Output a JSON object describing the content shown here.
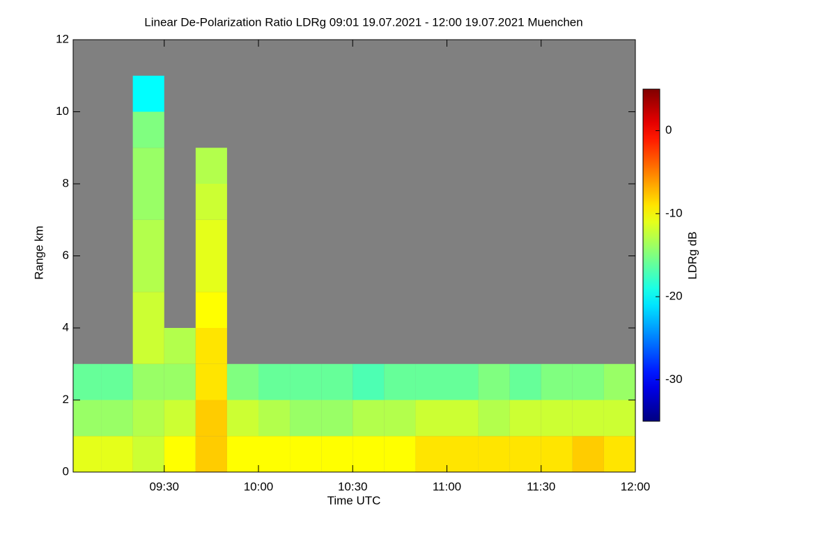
{
  "chart_data": {
    "type": "heatmap",
    "title": "Linear De-Polarization Ratio LDRg   09:01 19.07.2021 - 12:00 19.07.2021 Muenchen",
    "x_label": "Time UTC",
    "y_label": "Range km",
    "colorbar_label": "LDRg dB",
    "colormap": "jet",
    "nodata_color": "#808080",
    "x_bins": [
      541,
      550,
      560,
      570,
      580,
      590,
      600,
      610,
      620,
      630,
      640,
      650,
      660,
      670,
      680,
      690,
      700,
      710,
      720
    ],
    "y_bins": [
      0,
      1,
      2,
      3,
      4,
      5,
      6,
      7,
      8,
      9,
      10,
      11,
      12
    ],
    "z": [
      [
        -11,
        -11,
        -12,
        -10,
        -8,
        -10,
        -10,
        -10,
        -10,
        -10,
        -10,
        -9,
        -9,
        -9,
        -9,
        -9,
        -8,
        -9
      ],
      [
        -14,
        -14,
        -13,
        -12,
        -8,
        -12,
        -13,
        -14,
        -14,
        -13,
        -13,
        -12,
        -12,
        -13,
        -12,
        -12,
        -12,
        -12
      ],
      [
        -16,
        -16,
        -14,
        -14,
        -9,
        -15,
        -16,
        -16,
        -16,
        -17,
        -16,
        -16,
        -16,
        -15,
        -16,
        -15,
        -15,
        -14
      ],
      [
        null,
        null,
        -12,
        -13,
        -9,
        null,
        null,
        null,
        null,
        null,
        null,
        null,
        null,
        null,
        null,
        null,
        null,
        null
      ],
      [
        null,
        null,
        -12,
        null,
        -10,
        null,
        null,
        null,
        null,
        null,
        null,
        null,
        null,
        null,
        null,
        null,
        null,
        null
      ],
      [
        null,
        null,
        -13,
        null,
        -11,
        null,
        null,
        null,
        null,
        null,
        null,
        null,
        null,
        null,
        null,
        null,
        null,
        null
      ],
      [
        null,
        null,
        -13,
        null,
        -11,
        null,
        null,
        null,
        null,
        null,
        null,
        null,
        null,
        null,
        null,
        null,
        null,
        null
      ],
      [
        null,
        null,
        -14,
        null,
        -12,
        null,
        null,
        null,
        null,
        null,
        null,
        null,
        null,
        null,
        null,
        null,
        null,
        null
      ],
      [
        null,
        null,
        -14,
        null,
        -13,
        null,
        null,
        null,
        null,
        null,
        null,
        null,
        null,
        null,
        null,
        null,
        null,
        null
      ],
      [
        null,
        null,
        -15,
        null,
        null,
        null,
        null,
        null,
        null,
        null,
        null,
        null,
        null,
        null,
        null,
        null,
        null,
        null
      ],
      [
        null,
        null,
        -20,
        null,
        null,
        null,
        null,
        null,
        null,
        null,
        null,
        null,
        null,
        null,
        null,
        null,
        null,
        null
      ],
      [
        null,
        null,
        null,
        null,
        null,
        null,
        null,
        null,
        null,
        null,
        null,
        null,
        null,
        null,
        null,
        null,
        null,
        null
      ]
    ],
    "xlim": [
      541,
      720
    ],
    "xticks": [
      {
        "value": 570,
        "label": "09:30"
      },
      {
        "value": 600,
        "label": "10:00"
      },
      {
        "value": 630,
        "label": "10:30"
      },
      {
        "value": 660,
        "label": "11:00"
      },
      {
        "value": 690,
        "label": "11:30"
      },
      {
        "value": 720,
        "label": "12:00"
      }
    ],
    "ylim": [
      0,
      12
    ],
    "yticks": [
      0,
      2,
      4,
      6,
      8,
      10,
      12
    ],
    "zlim": [
      -35,
      5
    ],
    "zticks": [
      -30,
      -20,
      -10,
      0
    ]
  }
}
